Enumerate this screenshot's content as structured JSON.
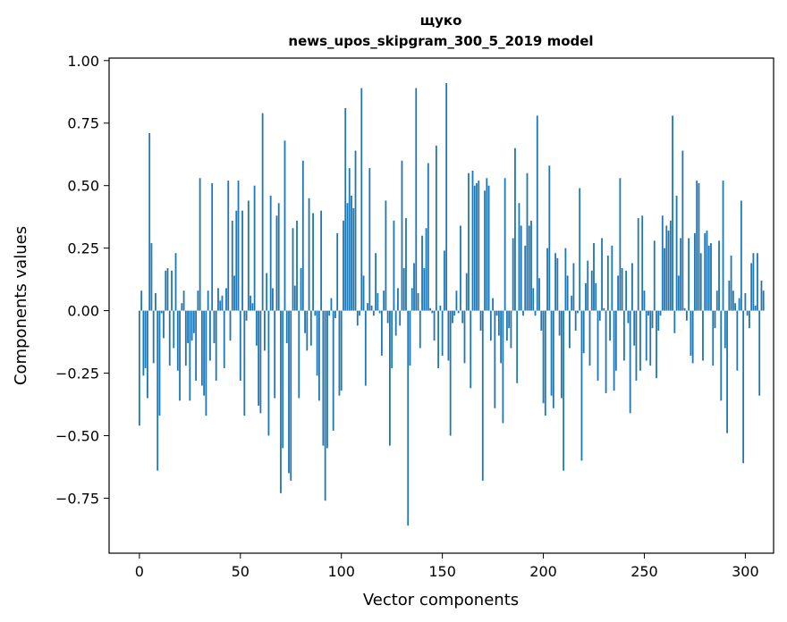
{
  "chart_data": {
    "type": "bar",
    "title": "щуко",
    "subtitle": "news_upos_skipgram_300_5_2019 model",
    "xlabel": "Vector components",
    "ylabel": "Components values",
    "xlim": [
      -15,
      314
    ],
    "ylim": [
      -0.97,
      1.01
    ],
    "xticks": [
      0,
      50,
      100,
      150,
      200,
      250,
      300
    ],
    "xtick_labels": [
      "0",
      "50",
      "100",
      "150",
      "200",
      "250",
      "300"
    ],
    "yticks": [
      1.0,
      0.75,
      0.5,
      0.25,
      0.0,
      -0.25,
      -0.5,
      -0.75
    ],
    "ytick_labels": [
      "1.00",
      "0.75",
      "0.50",
      "0.25",
      "0.00",
      "−0.25",
      "−0.50",
      "−0.75"
    ],
    "bar_color": "#1f77b4",
    "grid": false,
    "values": [
      -0.46,
      0.08,
      -0.26,
      -0.23,
      -0.35,
      0.71,
      0.27,
      -0.21,
      0.07,
      -0.64,
      -0.42,
      -0.01,
      -0.11,
      0.16,
      0.17,
      -0.22,
      0.16,
      -0.15,
      0.23,
      -0.24,
      -0.36,
      0.03,
      0.08,
      -0.22,
      -0.13,
      -0.36,
      -0.12,
      -0.09,
      -0.28,
      0.08,
      0.53,
      -0.3,
      -0.34,
      -0.42,
      0.08,
      -0.2,
      0.51,
      -0.13,
      -0.28,
      0.09,
      0.04,
      0.06,
      -0.23,
      0.09,
      0.52,
      -0.12,
      0.36,
      0.14,
      0.4,
      0.52,
      -0.28,
      0.4,
      -0.42,
      -0.04,
      0.44,
      0.06,
      0.03,
      0.5,
      -0.14,
      -0.38,
      -0.41,
      0.79,
      -0.16,
      0.15,
      -0.5,
      0.46,
      0.09,
      -0.35,
      0.38,
      0.43,
      -0.73,
      -0.55,
      0.68,
      -0.13,
      -0.65,
      -0.68,
      0.33,
      0.1,
      0.36,
      -0.35,
      0.17,
      0.6,
      -0.09,
      -0.16,
      0.45,
      -0.14,
      0.39,
      -0.02,
      -0.26,
      -0.36,
      0.4,
      -0.54,
      -0.76,
      -0.55,
      -0.02,
      0.05,
      -0.48,
      -0.03,
      0.31,
      -0.34,
      -0.32,
      0.36,
      0.81,
      0.43,
      0.57,
      0.46,
      0.41,
      0.64,
      -0.06,
      -0.02,
      0.89,
      0.14,
      -0.3,
      0.03,
      0.57,
      0.02,
      -0.02,
      0.23,
      0.07,
      -0.01,
      -0.18,
      0.08,
      0.44,
      -0.05,
      -0.54,
      -0.23,
      0.36,
      -0.1,
      0.09,
      -0.06,
      0.6,
      0.17,
      0.37,
      -0.86,
      -0.22,
      0.09,
      0.19,
      0.89,
      0.07,
      -0.15,
      0.3,
      0.17,
      0.33,
      0.59,
      0.01,
      -0.01,
      -0.12,
      0.66,
      -0.23,
      0.02,
      -0.18,
      0.24,
      0.91,
      -0.2,
      -0.5,
      -0.05,
      -0.02,
      0.08,
      -0.01,
      0.34,
      -0.05,
      -0.21,
      0.15,
      0.55,
      -0.31,
      0.56,
      0.5,
      0.51,
      0.52,
      -0.08,
      -0.68,
      0.48,
      0.53,
      0.5,
      -0.12,
      0.05,
      -0.39,
      -0.02,
      -0.1,
      -0.21,
      -0.45,
      0.53,
      -0.12,
      -0.07,
      -0.15,
      0.29,
      0.65,
      -0.29,
      0.43,
      0.34,
      -0.02,
      0.26,
      0.55,
      0.34,
      0.36,
      0.09,
      -0.02,
      0.78,
      0.13,
      -0.08,
      -0.37,
      -0.42,
      0.25,
      0.58,
      -0.34,
      -0.39,
      0.23,
      0.21,
      -0.1,
      -0.35,
      -0.64,
      0.25,
      0.14,
      -0.15,
      0.06,
      0.19,
      -0.08,
      -0.01,
      0.49,
      -0.6,
      -0.17,
      0.11,
      0.2,
      -0.22,
      0.16,
      0.27,
      0.11,
      -0.28,
      -0.04,
      0.29,
      0.01,
      -0.33,
      0.22,
      -0.12,
      0.26,
      -0.32,
      -0.24,
      0.14,
      0.53,
      0.17,
      -0.2,
      0.16,
      -0.05,
      -0.41,
      0.19,
      -0.14,
      -0.28,
      0.37,
      -0.24,
      0.38,
      0.08,
      -0.2,
      -0.02,
      -0.22,
      -0.07,
      0.28,
      -0.27,
      -0.08,
      -0.02,
      0.38,
      0.25,
      0.34,
      0.32,
      0.36,
      0.78,
      -0.09,
      0.46,
      0.14,
      0.29,
      0.64,
      0.01,
      -0.04,
      0.29,
      -0.18,
      -0.21,
      0.31,
      0.52,
      0.51,
      0.23,
      -0.2,
      0.31,
      0.32,
      0.26,
      0.27,
      -0.22,
      -0.07,
      0.08,
      0.28,
      -0.36,
      0.52,
      -0.15,
      -0.49,
      0.12,
      0.22,
      0.08,
      0.03,
      -0.24,
      0.05,
      0.44,
      -0.61,
      0.07,
      -0.02,
      -0.07,
      0.19,
      0.23,
      0.02,
      0.23,
      -0.34,
      0.12,
      0.08
    ]
  }
}
